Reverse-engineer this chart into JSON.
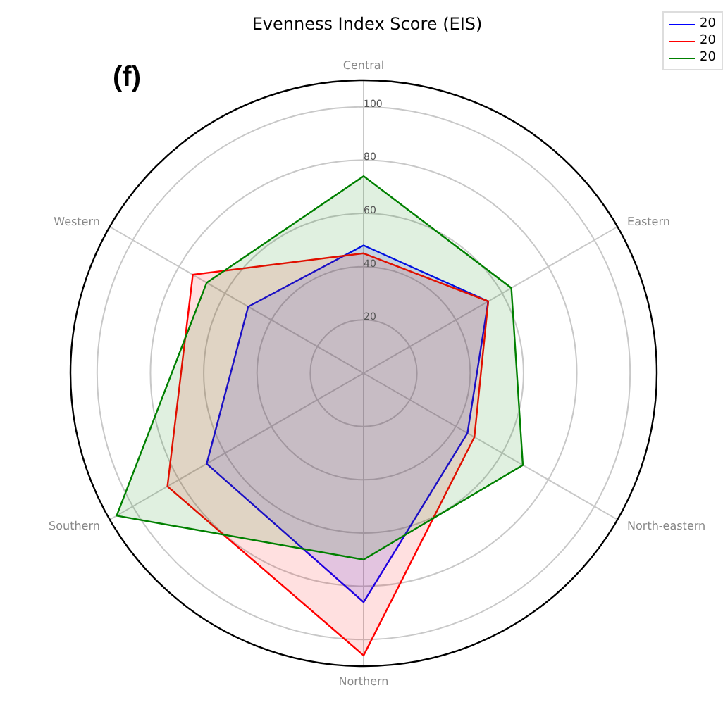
{
  "chart_data": {
    "type": "radar",
    "title": "Evenness Index Score (EIS)",
    "annotations": [
      "(f)"
    ],
    "categories": [
      "Central",
      "Eastern",
      "North-eastern",
      "Northern",
      "Southern",
      "Western"
    ],
    "series": [
      {
        "name": "20",
        "color": "#0000ff",
        "values": [
          48,
          54,
          45,
          86,
          68,
          50
        ]
      },
      {
        "name": "20",
        "color": "#ff0000",
        "values": [
          45,
          54,
          48,
          106,
          85,
          74
        ]
      },
      {
        "name": "20",
        "color": "#008000",
        "values": [
          74,
          64,
          69,
          70,
          107,
          68
        ]
      }
    ],
    "ylim": [
      0,
      110
    ],
    "yticks": [
      20,
      40,
      60,
      80,
      100
    ],
    "grid": true,
    "legend": "top right"
  }
}
